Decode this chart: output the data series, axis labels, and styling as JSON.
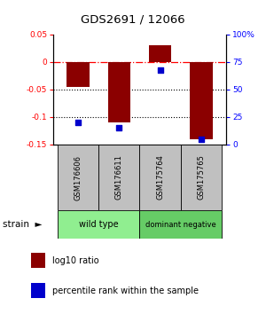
{
  "title": "GDS2691 / 12066",
  "samples": [
    "GSM176606",
    "GSM176611",
    "GSM175764",
    "GSM175765"
  ],
  "log10_ratio": [
    -0.045,
    -0.11,
    0.03,
    -0.14
  ],
  "percentile_rank": [
    20,
    15,
    68,
    5
  ],
  "ylim_left": [
    -0.15,
    0.05
  ],
  "ylim_right": [
    0,
    100
  ],
  "groups": [
    {
      "label": "wild type",
      "indices": [
        0,
        1
      ],
      "color": "#90EE90"
    },
    {
      "label": "dominant negative",
      "indices": [
        2,
        3
      ],
      "color": "#66CC66"
    }
  ],
  "bar_color": "#8B0000",
  "scatter_color": "#0000CC",
  "legend_bar_label": "log10 ratio",
  "legend_scatter_label": "percentile rank within the sample"
}
